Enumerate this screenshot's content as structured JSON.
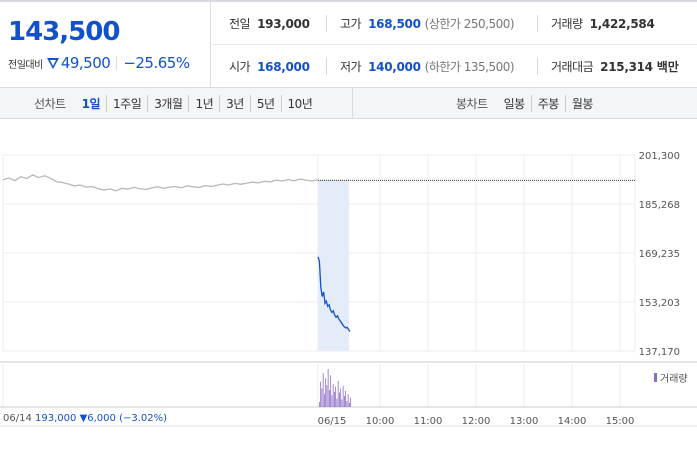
{
  "stock": {
    "current_price": "143,500",
    "diff_label": "전일대비",
    "diff_value": "49,500",
    "diff_rate": "−25.65%",
    "accent_color": "#1152cc"
  },
  "stats": {
    "prev_close": {
      "label": "전일",
      "value": "193,000"
    },
    "high": {
      "label": "고가",
      "value": "168,500",
      "sub": "(상한가 250,500)"
    },
    "volume": {
      "label": "거래량",
      "value": "1,422,584"
    },
    "open": {
      "label": "시가",
      "value": "168,000"
    },
    "low": {
      "label": "저가",
      "value": "140,000",
      "sub": "(하한가 135,500)"
    },
    "trade_amount": {
      "label": "거래대금",
      "value": "215,314",
      "unit": "백만"
    }
  },
  "toolbar": {
    "line_title": "선차트",
    "line_periods": [
      "1일",
      "1주일",
      "3개월",
      "1년",
      "3년",
      "5년",
      "10년"
    ],
    "active_period": "1일",
    "candle_title": "봉차트",
    "candle_periods": [
      "일봉",
      "주봉",
      "월봉"
    ]
  },
  "chart_data": {
    "type": "line",
    "title": "",
    "y_ticks": [
      "201,300",
      "185,268",
      "169,235",
      "153,203",
      "137,170"
    ],
    "ylim": [
      137170,
      201300
    ],
    "prev_close": 193000,
    "x_ticks": [
      "06/14",
      "06/15",
      "10:00",
      "11:00",
      "12:00",
      "13:00",
      "14:00",
      "15:00"
    ],
    "series": [
      {
        "values": [
          193200,
          193800,
          192900,
          194200,
          193600,
          194800,
          193900,
          194500,
          193700,
          192600,
          192300,
          191800,
          191200,
          191500,
          190800,
          191000,
          190300,
          189800,
          190200,
          189600,
          190400,
          190100,
          190700,
          190300,
          190000,
          190500,
          190900,
          190400,
          190800,
          191000,
          190600,
          191200,
          190900,
          190700,
          191300,
          191000,
          191400,
          191800,
          191500,
          192000,
          191700,
          192100,
          192400,
          192200,
          192700,
          192500,
          193100,
          192800,
          193300,
          192900,
          193400,
          193100,
          192800,
          193200
        ]
      },
      {
        "values": [
          168000,
          166500,
          158000,
          155000,
          156500,
          152800,
          153500,
          151800,
          152300,
          150600,
          149800,
          150300,
          148900,
          148200,
          148700,
          147600,
          147000,
          146300,
          145600,
          145100,
          144700,
          144900,
          144200,
          143500
        ]
      }
    ],
    "volume": {
      "legend": "거래량",
      "values": [
        12,
        60,
        44,
        80,
        30,
        68,
        52,
        90,
        40,
        75,
        28,
        55,
        36,
        48,
        20,
        62,
        34,
        44,
        18,
        50,
        26,
        38,
        14,
        30,
        10,
        22
      ]
    },
    "footer": {
      "prev_date": "06/14",
      "prev_close": "193,000",
      "prev_diff": "6,000",
      "prev_rate": "(−3.02%)"
    },
    "colors": {
      "line": "#1152cc",
      "baseline": "#333333",
      "highlight": "#e4ecf9",
      "volume": "#8e6cc9",
      "prev_line": "#b8b8b8"
    }
  }
}
